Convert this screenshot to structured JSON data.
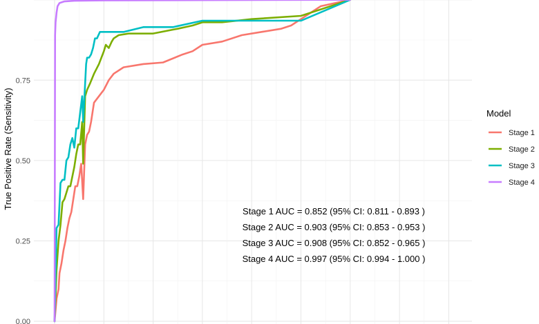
{
  "chart_data": {
    "type": "line",
    "title": "",
    "xlabel": "",
    "ylabel": "True Positive Rate (Sensitivity)",
    "ylim": [
      0,
      1
    ],
    "xlim": [
      0,
      1
    ],
    "y_ticks": [
      "0.00",
      "0.25",
      "0.50",
      "0.75"
    ],
    "grid": true,
    "legend": {
      "title": "Model",
      "placement": "right",
      "entries": [
        "Stage 1",
        "Stage 2",
        "Stage 3",
        "Stage 4"
      ]
    },
    "annotations": [
      "Stage 1 AUC =  0.852  (95% CI:  0.811 - 0.893 )",
      "Stage 2 AUC =  0.903  (95% CI:  0.853 - 0.953 )",
      "Stage 3 AUC =  0.908  (95% CI:  0.852 - 0.965 )",
      "Stage 4 AUC =  0.997  (95% CI:  0.994 - 1.000 )"
    ],
    "series": [
      {
        "name": "Stage 1",
        "color": "#F8766D",
        "x": [
          0.0,
          0.004,
          0.008,
          0.01,
          0.014,
          0.018,
          0.022,
          0.026,
          0.03,
          0.034,
          0.038,
          0.042,
          0.046,
          0.05,
          0.054,
          0.058,
          0.062,
          0.066,
          0.07,
          0.074,
          0.08,
          0.09,
          0.1,
          0.11,
          0.12,
          0.14,
          0.18,
          0.22,
          0.26,
          0.28,
          0.3,
          0.34,
          0.38,
          0.42,
          0.46,
          0.48,
          0.5,
          0.52,
          0.54,
          0.6
        ],
        "y": [
          0.0,
          0.07,
          0.1,
          0.15,
          0.18,
          0.22,
          0.25,
          0.29,
          0.32,
          0.34,
          0.38,
          0.42,
          0.42,
          0.45,
          0.49,
          0.38,
          0.55,
          0.58,
          0.59,
          0.62,
          0.68,
          0.7,
          0.72,
          0.75,
          0.77,
          0.79,
          0.8,
          0.805,
          0.83,
          0.84,
          0.86,
          0.87,
          0.89,
          0.9,
          0.91,
          0.92,
          0.94,
          0.96,
          0.98,
          1.0
        ]
      },
      {
        "name": "Stage 2",
        "color": "#7CAE00",
        "x": [
          0.0,
          0.004,
          0.008,
          0.012,
          0.016,
          0.02,
          0.024,
          0.028,
          0.032,
          0.036,
          0.04,
          0.044,
          0.048,
          0.052,
          0.056,
          0.058,
          0.062,
          0.066,
          0.072,
          0.08,
          0.09,
          0.1,
          0.104,
          0.11,
          0.116,
          0.12,
          0.13,
          0.15,
          0.2,
          0.25,
          0.28,
          0.3,
          0.34,
          0.4,
          0.5,
          0.6
        ],
        "y": [
          0.0,
          0.16,
          0.25,
          0.3,
          0.37,
          0.38,
          0.4,
          0.42,
          0.42,
          0.45,
          0.48,
          0.52,
          0.55,
          0.55,
          0.62,
          0.49,
          0.7,
          0.72,
          0.74,
          0.77,
          0.8,
          0.84,
          0.86,
          0.85,
          0.87,
          0.88,
          0.89,
          0.895,
          0.895,
          0.91,
          0.92,
          0.93,
          0.93,
          0.94,
          0.95,
          1.0
        ]
      },
      {
        "name": "Stage 3",
        "color": "#00BFC4",
        "x": [
          0.0,
          0.004,
          0.008,
          0.012,
          0.016,
          0.02,
          0.024,
          0.028,
          0.032,
          0.036,
          0.04,
          0.044,
          0.048,
          0.052,
          0.056,
          0.058,
          0.064,
          0.066,
          0.07,
          0.074,
          0.078,
          0.082,
          0.086,
          0.092,
          0.1,
          0.14,
          0.18,
          0.24,
          0.3,
          0.4,
          0.5,
          0.6
        ],
        "y": [
          0.0,
          0.29,
          0.3,
          0.43,
          0.44,
          0.44,
          0.5,
          0.51,
          0.55,
          0.57,
          0.54,
          0.6,
          0.6,
          0.65,
          0.7,
          0.62,
          0.8,
          0.82,
          0.82,
          0.83,
          0.85,
          0.88,
          0.88,
          0.9,
          0.9,
          0.9,
          0.915,
          0.915,
          0.935,
          0.935,
          0.935,
          1.0
        ]
      },
      {
        "name": "Stage 4",
        "color": "#C77CFF",
        "x": [
          0.0,
          0.001,
          0.002,
          0.004,
          0.006,
          0.01,
          0.02,
          0.04,
          0.1,
          0.3,
          0.6
        ],
        "y": [
          0.0,
          0.89,
          0.93,
          0.96,
          0.98,
          0.99,
          0.995,
          0.997,
          0.998,
          0.999,
          1.0
        ]
      }
    ]
  }
}
